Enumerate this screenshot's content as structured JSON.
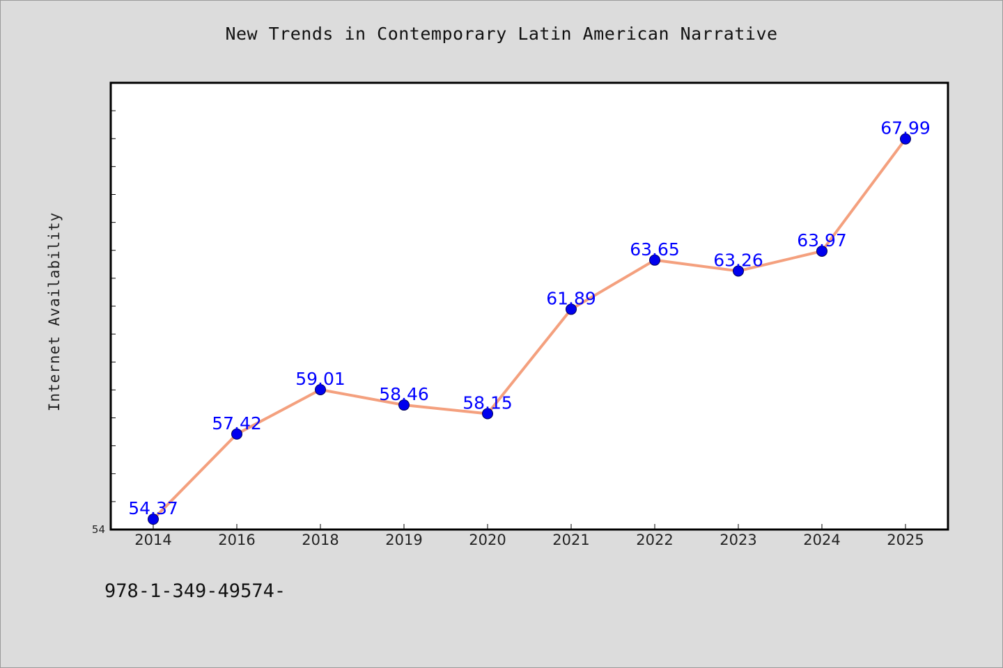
{
  "chart_data": {
    "type": "line",
    "title": "New Trends in Contemporary Latin American Narrative",
    "ylabel": "Internet Availability",
    "xlabel": "",
    "categories": [
      "2014",
      "2016",
      "2018",
      "2019",
      "2020",
      "2021",
      "2022",
      "2023",
      "2024",
      "2025"
    ],
    "series": [
      {
        "values": [
          54.37,
          57.42,
          59.01,
          58.46,
          58.15,
          61.89,
          63.65,
          63.26,
          63.97,
          67.99
        ]
      }
    ],
    "data_labels": [
      "54.37",
      "57.42",
      "59.01",
      "58.46",
      "58.15",
      "61.89",
      "63.65",
      "63.26",
      "63.97",
      "67.99"
    ],
    "y_tick_labels": [
      "54"
    ],
    "ylim": [
      54,
      70
    ],
    "grid": false,
    "colors": {
      "line": "#f4a07e",
      "marker": "#0000ee",
      "label": "#0000ff",
      "plot_background": "#ffffff",
      "page_background": "#dcdcdc"
    }
  },
  "footer": {
    "code": "978-1-349-49574-"
  }
}
